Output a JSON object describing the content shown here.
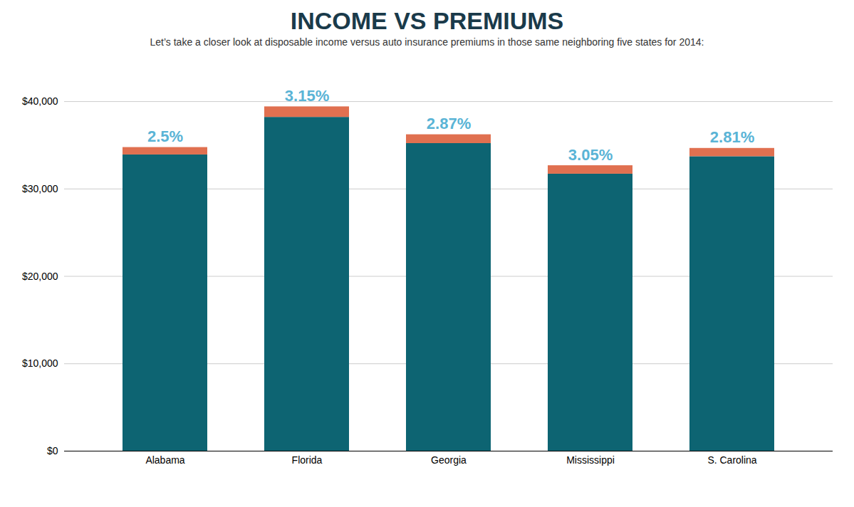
{
  "chart_data": {
    "type": "bar",
    "title": "INCOME VS PREMIUMS",
    "subtitle": "Let’s take a closer look at disposable income versus auto insurance premiums in those same neighboring five states for 2014:",
    "categories": [
      "Alabama",
      "Florida",
      "Georgia",
      "Mississippi",
      "S. Carolina"
    ],
    "series": [
      {
        "color": "#0d6472",
        "values": [
          33900,
          38200,
          35200,
          31700,
          33700
        ]
      },
      {
        "color": "#e07050",
        "values": [
          847.5,
          1203.3,
          1010.24,
          966.85,
          946.97
        ]
      }
    ],
    "stacked": true,
    "annotations": [
      "2.5%",
      "3.15%",
      "2.87%",
      "3.05%",
      "2.81%"
    ],
    "ylim": [
      0,
      44000
    ],
    "yticks": [
      {
        "value": 0,
        "label": "$0"
      },
      {
        "value": 10000,
        "label": "$10,000"
      },
      {
        "value": 20000,
        "label": "$20,000"
      },
      {
        "value": 30000,
        "label": "$30,000"
      },
      {
        "value": 40000,
        "label": "$40,000"
      }
    ],
    "grid": true
  }
}
